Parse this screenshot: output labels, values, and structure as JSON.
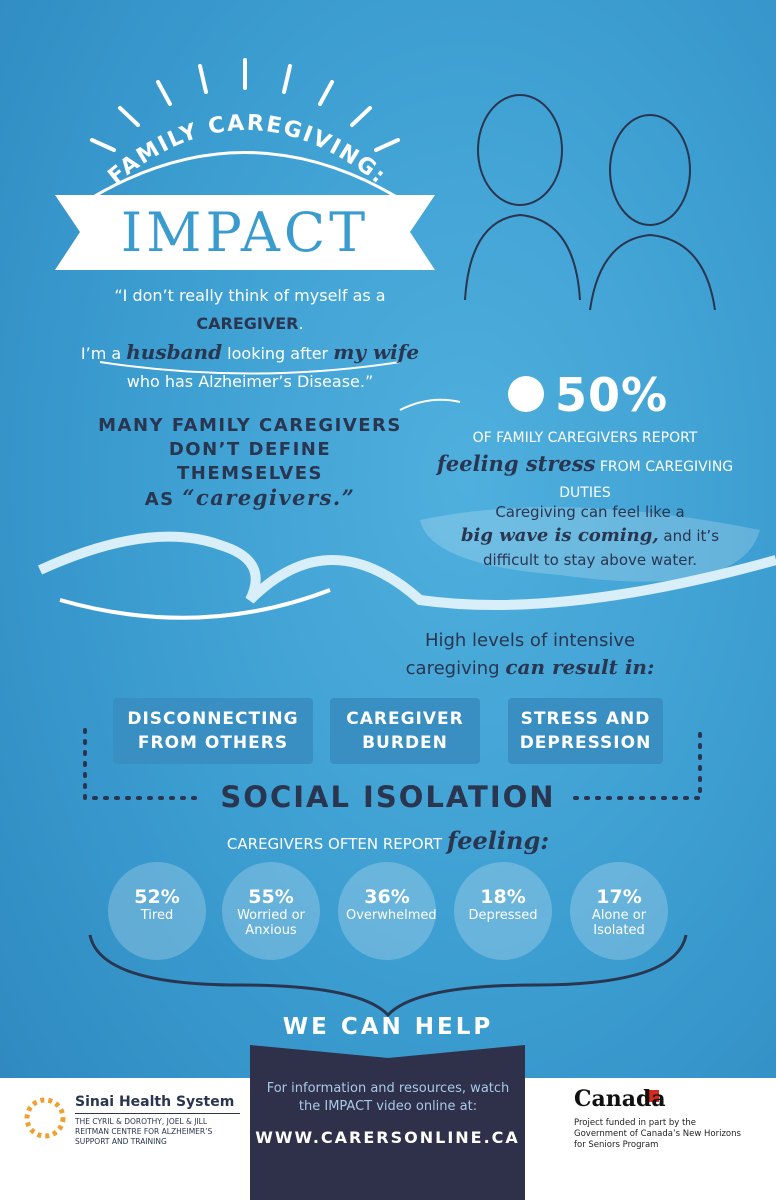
{
  "header": {
    "arc_title": "FAMILY CAREGIVING:",
    "title": "IMPACT"
  },
  "quote": {
    "line1": [
      "“I don’t really think of myself as a ",
      "CAREGIVER",
      "."
    ],
    "line2": [
      "I’m a ",
      "husband",
      " looking after ",
      "my wife"
    ],
    "line3": "who has Alzheimer’s Disease.”"
  },
  "claim": {
    "lines": [
      "MANY FAMILY CAREGIVERS",
      "DON’T DEFINE THEMSELVES",
      "AS"
    ],
    "emphasis": "“caregivers.”"
  },
  "stat": {
    "value": "50%",
    "line1": "OF FAMILY CAREGIVERS REPORT",
    "emphasis": "feeling stress",
    "line2": "FROM CAREGIVING DUTIES"
  },
  "wave_note": {
    "line1": "Caregiving can feel like a",
    "emphasis": "big wave is coming,",
    "line2": "and it’s",
    "line3": "difficult to stay above water."
  },
  "result": {
    "line1": "High levels of intensive",
    "line2": "caregiving",
    "emphasis": "can result in:"
  },
  "outcomes": [
    "DISCONNECTING FROM OTHERS",
    "CAREGIVER BURDEN",
    "STRESS AND DEPRESSION"
  ],
  "isolation": "SOCIAL ISOLATION",
  "feelings": {
    "lead": "CAREGIVERS OFTEN REPORT",
    "emphasis": "feeling:",
    "items": [
      {
        "percent": "52%",
        "label": "Tired"
      },
      {
        "percent": "55%",
        "label": "Worried or Anxious"
      },
      {
        "percent": "36%",
        "label": "Overwhelmed"
      },
      {
        "percent": "18%",
        "label": "Depressed"
      },
      {
        "percent": "17%",
        "label": "Alone or Isolated"
      }
    ]
  },
  "help": "WE CAN HELP",
  "footer": {
    "sinai": {
      "name": "Sinai Health System",
      "sub": "THE CYRIL & DOROTHY, JOEL & JILL REITMAN CENTRE FOR ALZHEIMER’S SUPPORT AND TRAINING"
    },
    "center": {
      "text": "For information and resources, watch the IMPACT video online at:",
      "url": "WWW.CARERSONLINE.CA"
    },
    "canada": {
      "wordmark": "Canada",
      "note": "Project funded in part by the Government of Canada’s New Horizons for Seniors Program"
    }
  }
}
